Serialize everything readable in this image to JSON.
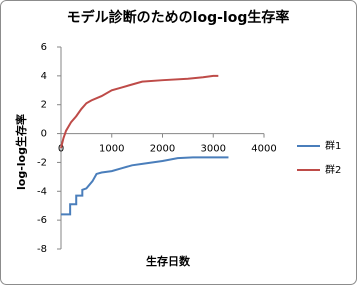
{
  "chart_data": {
    "type": "line",
    "title": "モデル診断のためのlog-log生存率",
    "x_label": "生存日数",
    "y_label": "log-log生存率",
    "xlim": [
      0,
      4000
    ],
    "xticks": [
      0,
      1000,
      2000,
      3000,
      4000
    ],
    "ylim": [
      -8,
      6
    ],
    "yticks": [
      -8,
      -6,
      -4,
      -2,
      0,
      2,
      4,
      6
    ],
    "legend": "right",
    "series": [
      {
        "name": "群1",
        "color": "#4a7ebb",
        "x": [
          0,
          180,
          180,
          300,
          300,
          420,
          420,
          500,
          620,
          700,
          800,
          1000,
          1200,
          1400,
          1600,
          2000,
          2300,
          2600,
          3300
        ],
        "values": [
          -5.6,
          -5.6,
          -4.9,
          -4.9,
          -4.3,
          -4.3,
          -3.9,
          -3.8,
          -3.3,
          -2.8,
          -2.7,
          -2.6,
          -2.4,
          -2.2,
          -2.1,
          -1.9,
          -1.7,
          -1.65,
          -1.65
        ]
      },
      {
        "name": "群2",
        "color": "#be4b48",
        "x": [
          0,
          50,
          100,
          150,
          200,
          300,
          400,
          500,
          600,
          800,
          1000,
          1200,
          1400,
          1600,
          2000,
          2500,
          2800,
          3000,
          3100
        ],
        "values": [
          -1,
          -0.3,
          0.2,
          0.5,
          0.8,
          1.2,
          1.7,
          2.1,
          2.3,
          2.6,
          3.0,
          3.2,
          3.4,
          3.6,
          3.7,
          3.8,
          3.9,
          4.0,
          4.0
        ]
      }
    ]
  }
}
